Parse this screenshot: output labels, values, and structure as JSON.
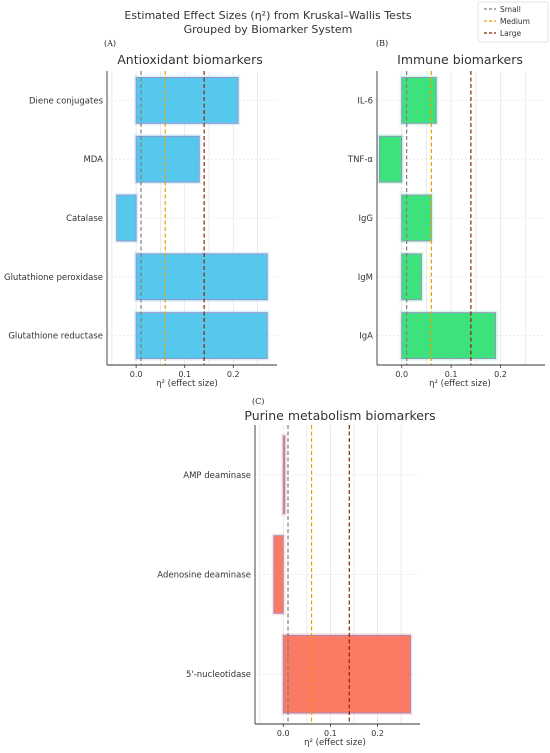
{
  "figure": {
    "title_line1": "Estimated Effect Sizes (η²) from Kruskal–Wallis Tests",
    "title_line2": "Grouped by Biomarker System"
  },
  "legend": {
    "placement": "top-right",
    "items": [
      {
        "label": "Small",
        "color": "#7f7f7f"
      },
      {
        "label": "Medium",
        "color": "#e6a100"
      },
      {
        "label": "Large",
        "color": "#8b2500"
      }
    ]
  },
  "thresholds": {
    "small": 0.01,
    "medium": 0.06,
    "large": 0.14
  },
  "chart_data": [
    {
      "type": "bar",
      "orientation": "horizontal",
      "panel": "(A)",
      "title": "Antioxidant biomarkers",
      "xlabel": "η² (effect size)",
      "ylabel": "",
      "xlim": [
        -0.06,
        0.29
      ],
      "xticks": [
        0.0,
        0.1,
        0.2
      ],
      "xtick_labels": [
        "0.0",
        "0.1",
        "0.2"
      ],
      "grid": true,
      "bar_color": "#56c8ee",
      "categories": [
        "Diene conjugates",
        "MDA",
        "Catalase",
        "Glutathione peroxidase",
        "Glutathione reductase"
      ],
      "values": [
        0.21,
        0.13,
        -0.04,
        0.27,
        0.27
      ]
    },
    {
      "type": "bar",
      "orientation": "horizontal",
      "panel": "(B)",
      "title": "Immune biomarkers",
      "xlabel": "η² (effect size)",
      "ylabel": "",
      "xlim": [
        -0.05,
        0.29
      ],
      "xticks": [
        0.0,
        0.1,
        0.2
      ],
      "xtick_labels": [
        "0.0",
        "0.1",
        "0.2"
      ],
      "grid": true,
      "bar_color": "#3ee27c",
      "categories": [
        "IL-6",
        "TNF-α",
        "IgG",
        "IgM",
        "IgA"
      ],
      "values": [
        0.07,
        -0.045,
        0.06,
        0.04,
        0.19
      ]
    },
    {
      "type": "bar",
      "orientation": "horizontal",
      "panel": "(C)",
      "title": "Purine metabolism biomarkers",
      "xlabel": "η² (effect size)",
      "ylabel": "",
      "xlim": [
        -0.06,
        0.29
      ],
      "xticks": [
        0.0,
        0.1,
        0.2
      ],
      "xtick_labels": [
        "0.0",
        "0.1",
        "0.2"
      ],
      "grid": true,
      "bar_color": "#fb7a64",
      "categories": [
        "AMP deaminase",
        "Adenosine deaminase",
        "5'-nucleotidase"
      ],
      "values": [
        0.003,
        -0.02,
        0.27
      ]
    }
  ]
}
